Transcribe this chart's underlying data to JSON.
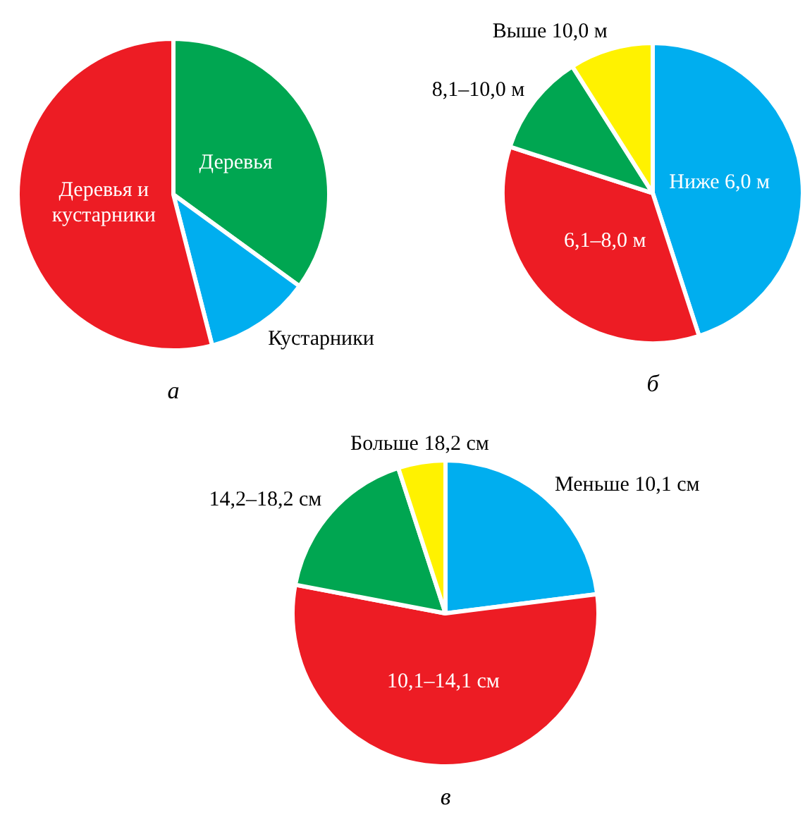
{
  "chart_data": [
    {
      "type": "pie",
      "title": "а",
      "categories": [
        "Деревья",
        "Кустарники",
        "Деревья и кустарники"
      ],
      "values": [
        35,
        11,
        54
      ],
      "colors": [
        "#00a651",
        "#00aeef",
        "#ed1c24"
      ]
    },
    {
      "type": "pie",
      "title": "б",
      "categories": [
        "Ниже 6,0 м",
        "6,1–8,0 м",
        "8,1–10,0 м",
        "Выше 10,0 м"
      ],
      "values": [
        45,
        35,
        11,
        9
      ],
      "colors": [
        "#00aeef",
        "#ed1c24",
        "#00a651",
        "#fff200"
      ]
    },
    {
      "type": "pie",
      "title": "в",
      "categories": [
        "Меньше 10,1 см",
        "10,1–14,1 см",
        "14,2–18,2 см",
        "Больше 18,2 см"
      ],
      "values": [
        23,
        55,
        17,
        5
      ],
      "colors": [
        "#00aeef",
        "#ed1c24",
        "#00a651",
        "#fff200"
      ]
    }
  ]
}
